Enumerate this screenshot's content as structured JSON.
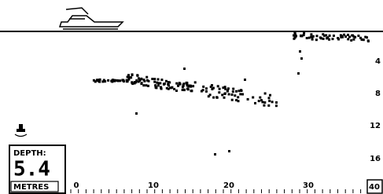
{
  "depth_box": {
    "label": "DEPTH:",
    "value": "5.4",
    "unit": "METRES"
  },
  "depth_scale": [
    "4",
    "8",
    "12",
    "16"
  ],
  "range_label": "40",
  "distance_scale": [
    "0",
    "10",
    "20",
    "30"
  ]
}
